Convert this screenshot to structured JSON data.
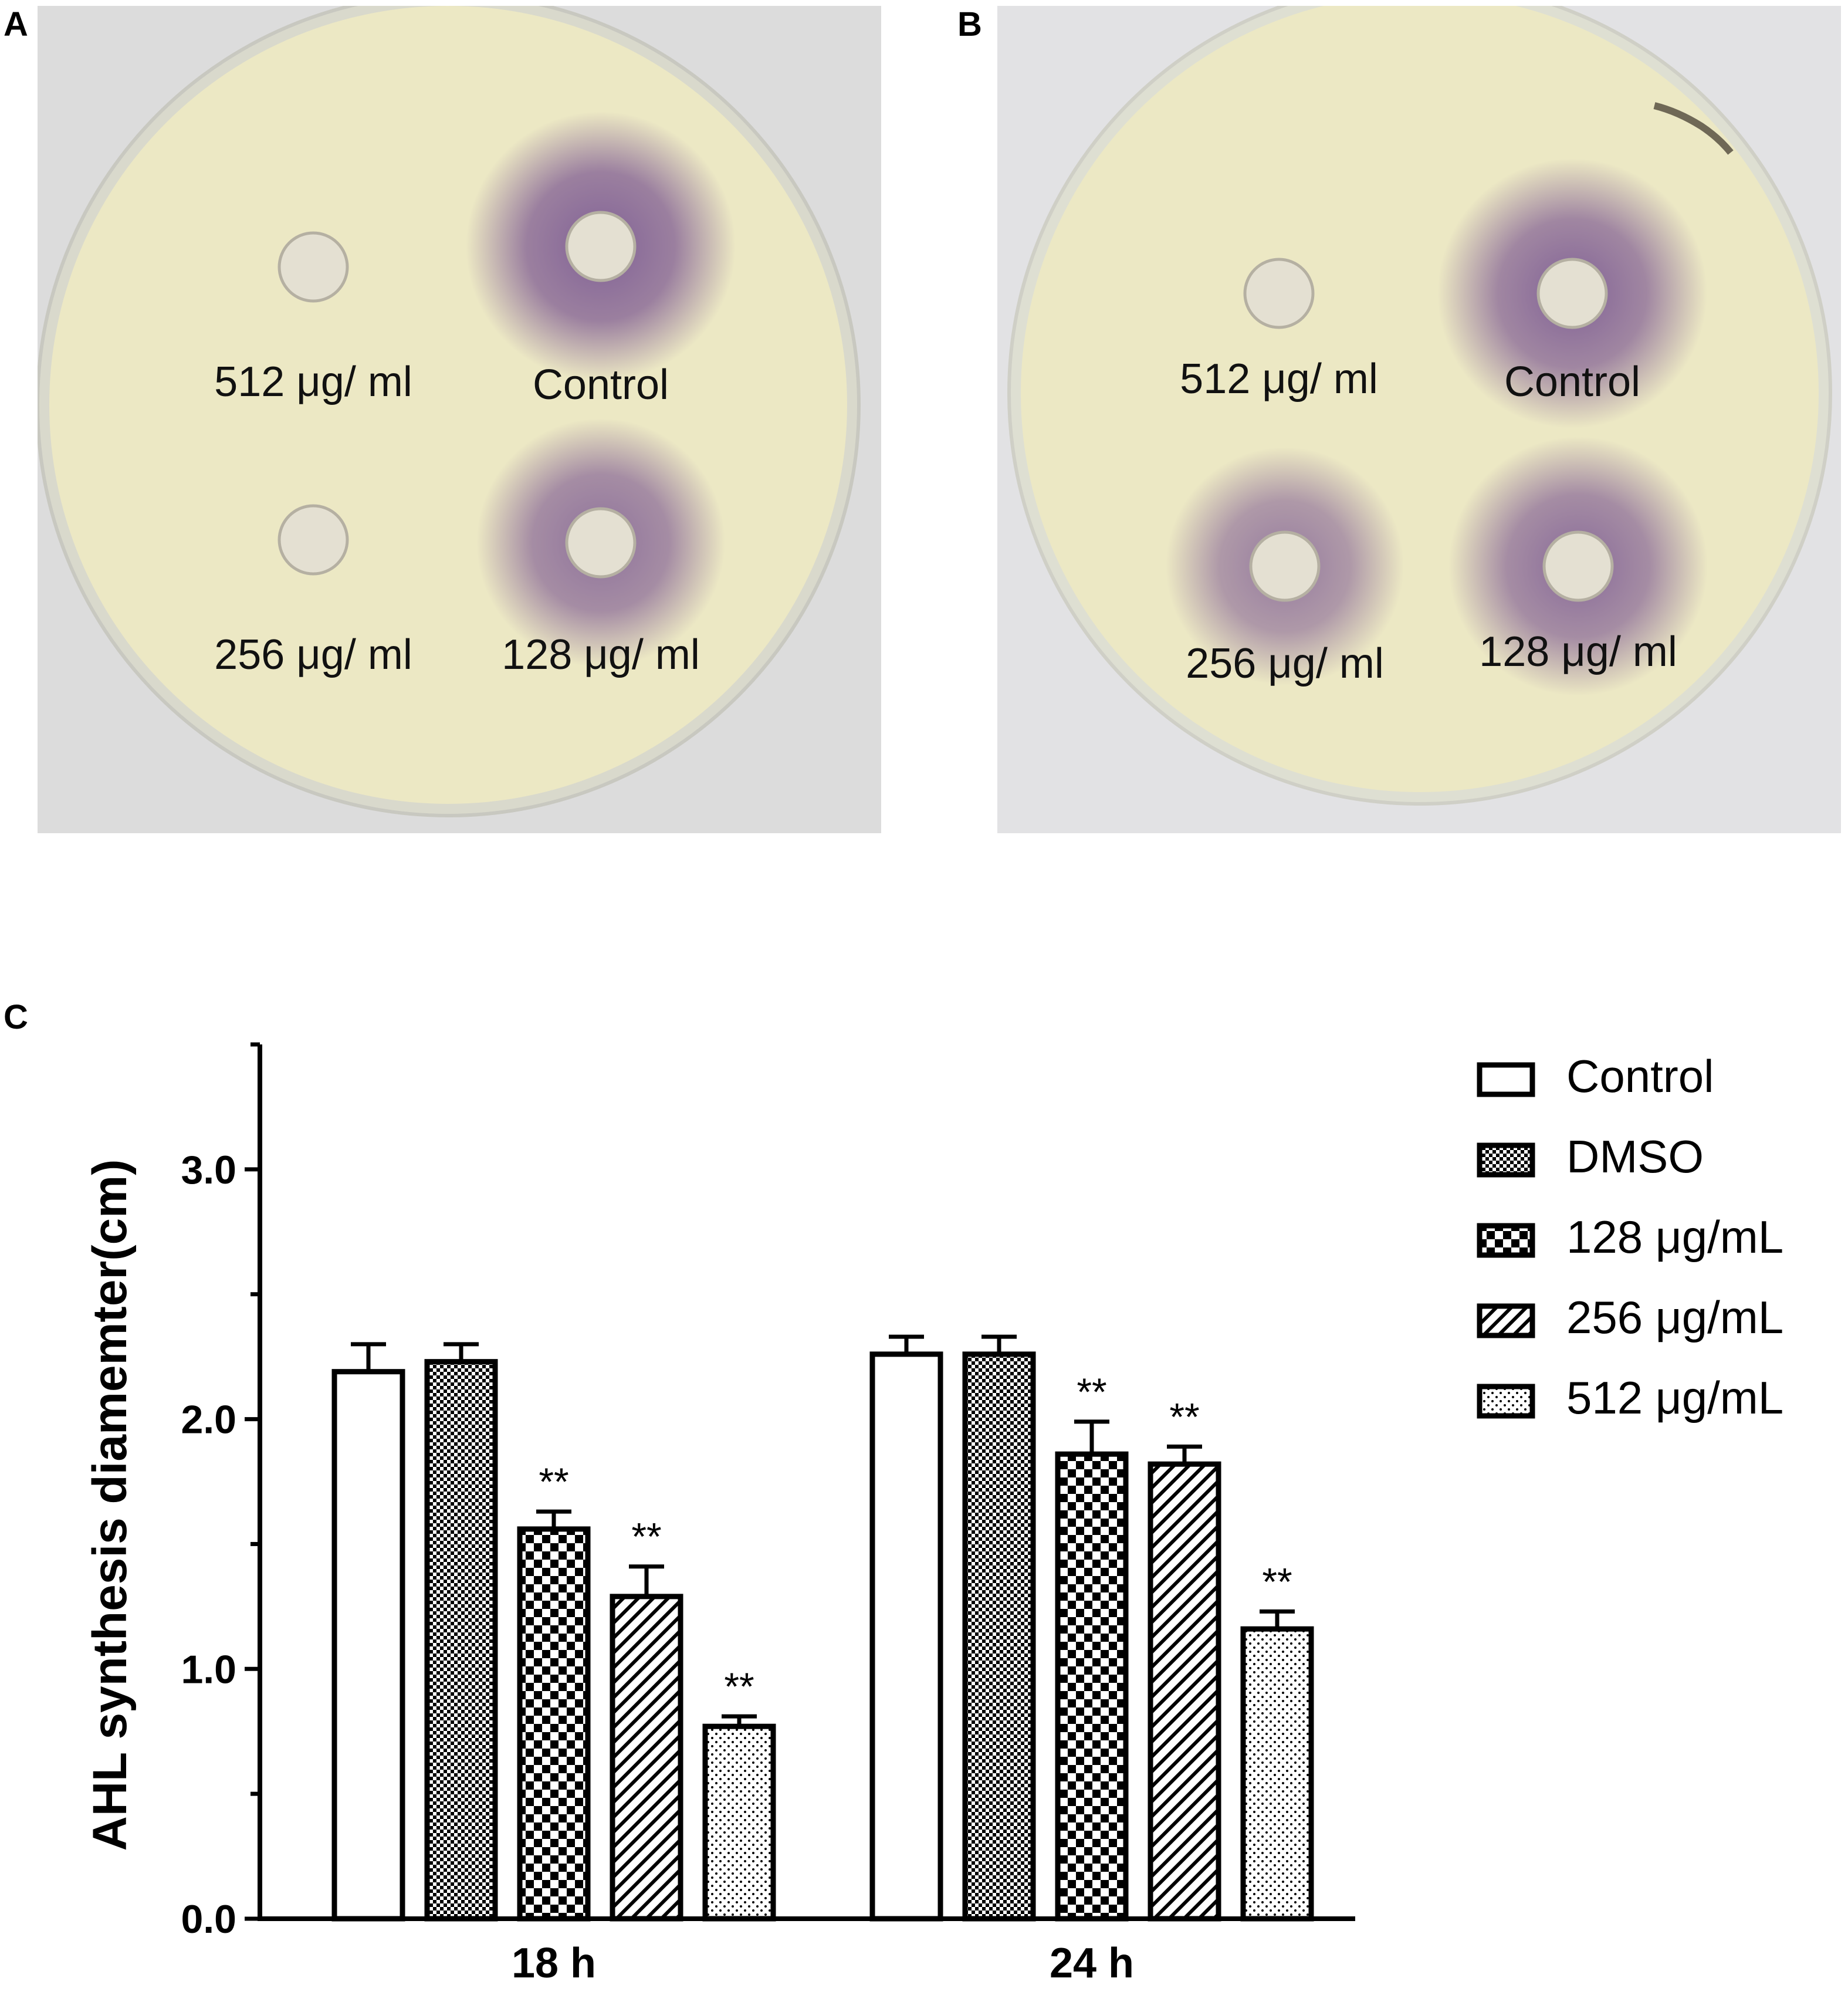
{
  "panels": {
    "a": {
      "letter": "A",
      "wells": [
        {
          "label": "512 μg/ ml",
          "halo": 0
        },
        {
          "label": "Control",
          "halo": 1
        },
        {
          "label": "256 μg/ ml",
          "halo": 0
        },
        {
          "label": "128 μg/ ml",
          "halo": 0.8
        }
      ]
    },
    "b": {
      "letter": "B",
      "wells": [
        {
          "label": "512 μg/ ml",
          "halo": 0
        },
        {
          "label": "Control",
          "halo": 1
        },
        {
          "label": "256 μg/ ml",
          "halo": 0.7
        },
        {
          "label": "128 μg/ ml",
          "halo": 0.9
        }
      ]
    },
    "c": {
      "letter": "C"
    }
  },
  "colors": {
    "plate": "#ece8c4",
    "background_a": "#dcdcdc",
    "background_b": "#e2e2e4",
    "halo": "#6e4a8e",
    "bar_stroke": "#000000"
  },
  "chart_data": {
    "type": "bar",
    "title": "",
    "xlabel": "",
    "ylabel": "AHL synthesis diamemter(cm)",
    "categories": [
      "18 h",
      "24 h"
    ],
    "ylim": [
      0,
      3.5
    ],
    "yticks": [
      0.0,
      1.0,
      2.0,
      3.0
    ],
    "ytick_labels": [
      "0.0",
      "1.0",
      "2.0",
      "3.0"
    ],
    "series": [
      {
        "name": "Control",
        "pattern": "none",
        "values": [
          2.19,
          2.26
        ],
        "errors": [
          0.11,
          0.07
        ],
        "sig": [
          "",
          ""
        ]
      },
      {
        "name": "DMSO",
        "pattern": "fine-check",
        "values": [
          2.23,
          2.26
        ],
        "errors": [
          0.07,
          0.07
        ],
        "sig": [
          "",
          ""
        ]
      },
      {
        "name": "128 μg/mL",
        "pattern": "checker",
        "values": [
          1.56,
          1.86
        ],
        "errors": [
          0.07,
          0.13
        ],
        "sig": [
          "**",
          "**"
        ]
      },
      {
        "name": "256 μg/mL",
        "pattern": "diagonal",
        "values": [
          1.29,
          1.82
        ],
        "errors": [
          0.12,
          0.07
        ],
        "sig": [
          "**",
          "**"
        ]
      },
      {
        "name": "512 μg/mL",
        "pattern": "dots",
        "values": [
          0.77,
          1.16
        ],
        "errors": [
          0.04,
          0.07
        ],
        "sig": [
          "**",
          "**"
        ]
      }
    ],
    "legend_position": "right"
  }
}
